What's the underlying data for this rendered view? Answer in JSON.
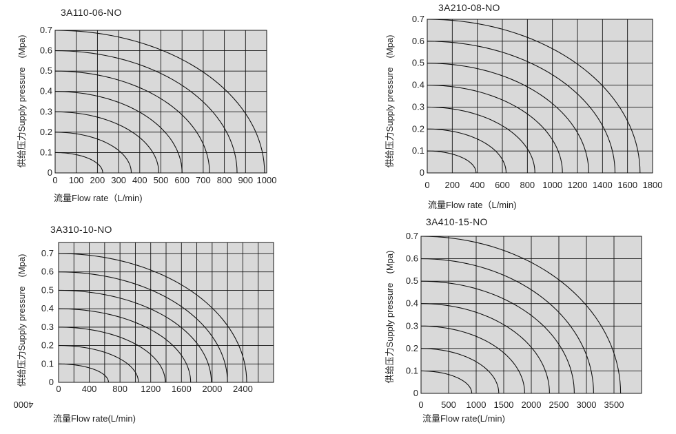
{
  "chart_data": [
    {
      "type": "line",
      "title": "3A110-06-NO",
      "xlabel": "流量Flow rate（L/min)",
      "ylabel": "供给压力Supply pressure　(Mpa)",
      "x_ticks": [
        "0",
        "100",
        "200",
        "300",
        "400",
        "500",
        "600",
        "700",
        "800",
        "900",
        "1000"
      ],
      "y_ticks": [
        "0",
        "0.1",
        "0.2",
        "0.3",
        "0.4",
        "0.5",
        "0.6",
        "0.7"
      ],
      "xlim": [
        0,
        1000
      ],
      "ylim": [
        0,
        0.7
      ],
      "grid": true,
      "x_divisions": 10,
      "y_divisions": 7,
      "series": [
        {
          "pressure": 0.1,
          "max_flow": 225
        },
        {
          "pressure": 0.2,
          "max_flow": 360
        },
        {
          "pressure": 0.3,
          "max_flow": 490
        },
        {
          "pressure": 0.4,
          "max_flow": 600
        },
        {
          "pressure": 0.5,
          "max_flow": 730
        },
        {
          "pressure": 0.6,
          "max_flow": 860
        },
        {
          "pressure": 0.7,
          "max_flow": 990
        }
      ]
    },
    {
      "type": "line",
      "title": "3A210-08-NO",
      "xlabel": "流量Flow rate（L/min)",
      "ylabel": "供给压力Supply pressure　(Mpa)",
      "x_ticks": [
        "0",
        "200",
        "400",
        "600",
        "800",
        "1000",
        "1200",
        "1400",
        "1600",
        "1800"
      ],
      "y_ticks": [
        "0",
        "0.1",
        "0.2",
        "0.3",
        "0.4",
        "0.5",
        "0.6",
        "0.7"
      ],
      "xlim": [
        0,
        1800
      ],
      "ylim": [
        0,
        0.7
      ],
      "grid": true,
      "x_divisions": 9,
      "y_divisions": 7,
      "series": [
        {
          "pressure": 0.1,
          "max_flow": 390
        },
        {
          "pressure": 0.2,
          "max_flow": 630
        },
        {
          "pressure": 0.3,
          "max_flow": 860
        },
        {
          "pressure": 0.4,
          "max_flow": 1080
        },
        {
          "pressure": 0.5,
          "max_flow": 1290
        },
        {
          "pressure": 0.6,
          "max_flow": 1500
        },
        {
          "pressure": 0.7,
          "max_flow": 1700
        }
      ]
    },
    {
      "type": "line",
      "title": "3A310-10-NO",
      "xlabel": "流量Flow rate(L/min)",
      "ylabel": "供给压力Supply pressure　(Mpa)",
      "x_ticks": [
        "0",
        "400",
        "800",
        "1200",
        "1600",
        "2000",
        "2400"
      ],
      "stray_label": "4000",
      "y_ticks": [
        "0",
        "0.1",
        "0.2",
        "0.3",
        "0.4",
        "0.5",
        "0.6",
        "0.7"
      ],
      "xlim": [
        0,
        2800
      ],
      "ylim": [
        0,
        0.76
      ],
      "grid": true,
      "x_divisions": 14,
      "y_divisions": 7,
      "series": [
        {
          "pressure": 0.1,
          "max_flow": 650
        },
        {
          "pressure": 0.2,
          "max_flow": 1040
        },
        {
          "pressure": 0.3,
          "max_flow": 1390
        },
        {
          "pressure": 0.4,
          "max_flow": 1720
        },
        {
          "pressure": 0.5,
          "max_flow": 1990
        },
        {
          "pressure": 0.6,
          "max_flow": 2200
        },
        {
          "pressure": 0.7,
          "max_flow": 2450
        }
      ]
    },
    {
      "type": "line",
      "title": "3A410-15-NO",
      "xlabel": "流量Flow rate(L/min)",
      "ylabel": "供给压力Supply pressure　(Mpa)",
      "x_ticks": [
        "0",
        "500",
        "1000",
        "1500",
        "2000",
        "2500",
        "3000",
        "3500"
      ],
      "y_ticks": [
        "0",
        "0.1",
        "0.2",
        "0.3",
        "0.4",
        "0.5",
        "0.6",
        "0.7"
      ],
      "xlim": [
        0,
        4000
      ],
      "ylim": [
        0,
        0.7
      ],
      "grid": true,
      "x_divisions": 8,
      "y_divisions": 7,
      "series": [
        {
          "pressure": 0.1,
          "max_flow": 920
        },
        {
          "pressure": 0.2,
          "max_flow": 1410
        },
        {
          "pressure": 0.3,
          "max_flow": 1880
        },
        {
          "pressure": 0.4,
          "max_flow": 2330
        },
        {
          "pressure": 0.5,
          "max_flow": 2780
        },
        {
          "pressure": 0.6,
          "max_flow": 3130
        },
        {
          "pressure": 0.7,
          "max_flow": 3620
        }
      ]
    }
  ]
}
